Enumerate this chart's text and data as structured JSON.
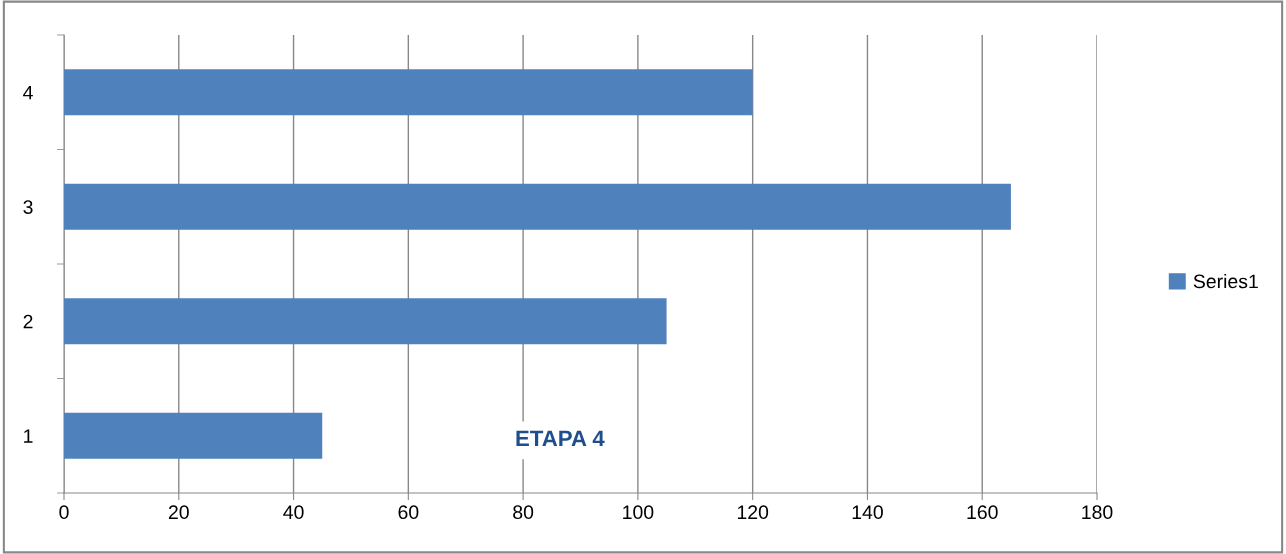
{
  "chart_data": {
    "type": "bar",
    "orientation": "horizontal",
    "categories": [
      "4",
      "3",
      "2",
      "1"
    ],
    "series": [
      {
        "name": "Series1",
        "color": "#4f81bd",
        "values": [
          120,
          165,
          105,
          45
        ]
      }
    ],
    "xlim": [
      0,
      180
    ],
    "xticks": [
      0,
      20,
      40,
      60,
      80,
      100,
      120,
      140,
      160,
      180
    ],
    "grid": "x",
    "legend": "right",
    "annotations": [
      "ETAPA 4"
    ]
  }
}
